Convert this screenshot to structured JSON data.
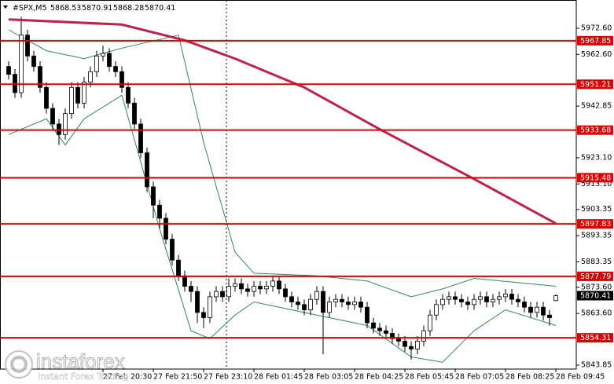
{
  "chart_data": {
    "type": "candlestick",
    "title": "#SPX,M5",
    "xlim": [
      -1.375,
      90.25
    ],
    "ylim": [
      5842.35,
      5983.4
    ],
    "yticks": [
      {
        "value": 5972.6,
        "label": "5972.60"
      },
      {
        "value": 5962.6,
        "label": "5962.60"
      },
      5942.85,
      {
        "value": 5923.1,
        "label": "5923.10"
      },
      {
        "value": 5913.1,
        "label": "5913.10"
      },
      5903.35,
      5893.35,
      5883.35,
      {
        "value": 5873.6,
        "label": "5873.60"
      },
      {
        "value": 5863.6,
        "label": "5863.60"
      },
      5843.85
    ],
    "xticks": [
      {
        "value": 15,
        "label": "27 Feb 20:30"
      },
      {
        "value": 23,
        "label": "27 Feb 21:50"
      },
      {
        "value": 31,
        "label": "27 Feb 23:10"
      },
      {
        "value": 39,
        "label": "28 Feb 01:45"
      },
      {
        "value": 47,
        "label": "28 Feb 03:05"
      },
      {
        "value": 55,
        "label": "28 Feb 04:25"
      },
      {
        "value": 63,
        "label": "28 Feb 05:45"
      },
      {
        "value": 71,
        "label": "28 Feb 07:05"
      },
      {
        "value": 79,
        "label": "28 Feb 08:25"
      },
      {
        "value": 87,
        "label": "28 Feb 09:45"
      }
    ],
    "open": [
      5958,
      5955,
      5948,
      5970,
      5962,
      5958,
      5950,
      5942,
      5936,
      5932,
      5940,
      5950,
      5944,
      5952,
      5956,
      5962,
      5963,
      5958,
      5956,
      5950,
      5944,
      5936,
      5925,
      5912,
      5905,
      5900,
      5892,
      5884,
      5878,
      5874,
      5872,
      5864,
      5862,
      5870,
      5872,
      5870,
      5874,
      5875,
      5873,
      5872,
      5874,
      5873,
      5874,
      5876,
      5873,
      5870,
      5868,
      5867,
      5865,
      5869,
      5872,
      5864,
      5868,
      5869,
      5868,
      5867,
      5868,
      5866,
      5860,
      5858,
      5857,
      5856,
      5854,
      5853,
      5851,
      5850,
      5853,
      5857,
      5863,
      5867,
      5869,
      5870,
      5869,
      5868,
      5867,
      5869,
      5870,
      5868,
      5869,
      5870,
      5871,
      5869,
      5868,
      5866,
      5864,
      5866,
      5863,
      5868.53
    ],
    "high": [
      5960,
      5957,
      5977,
      5972,
      5964,
      5960,
      5952,
      5944,
      5938,
      5942,
      5952,
      5952,
      5954,
      5958,
      5964,
      5966,
      5965,
      5960,
      5958,
      5952,
      5946,
      5938,
      5927,
      5914,
      5907,
      5902,
      5894,
      5886,
      5880,
      5876,
      5874,
      5866,
      5872,
      5874,
      5874,
      5877,
      5877,
      5877,
      5875,
      5876,
      5876,
      5876,
      5878,
      5878,
      5875,
      5872,
      5870,
      5869,
      5871,
      5874,
      5874,
      5870,
      5871,
      5871,
      5870,
      5870,
      5870,
      5868,
      5862,
      5860,
      5859,
      5858,
      5856,
      5855,
      5853,
      5855,
      5859,
      5865,
      5869,
      5871,
      5872,
      5872,
      5871,
      5870,
      5871,
      5872,
      5872,
      5871,
      5872,
      5873,
      5873,
      5871,
      5870,
      5868,
      5868,
      5868,
      5865,
      5870.91
    ],
    "low": [
      5953,
      5946,
      5946,
      5960,
      5956,
      5948,
      5940,
      5934,
      5928,
      5930,
      5938,
      5942,
      5942,
      5950,
      5954,
      5960,
      5956,
      5954,
      5948,
      5942,
      5934,
      5923,
      5910,
      5900,
      5896,
      5890,
      5882,
      5876,
      5872,
      5868,
      5860,
      5858,
      5860,
      5868,
      5868,
      5868,
      5872,
      5871,
      5870,
      5870,
      5871,
      5871,
      5872,
      5871,
      5868,
      5866,
      5865,
      5863,
      5863,
      5867,
      5848,
      5862,
      5866,
      5866,
      5865,
      5865,
      5864,
      5858,
      5856,
      5855,
      5854,
      5852,
      5851,
      5849,
      5846,
      5848,
      5851,
      5855,
      5861,
      5865,
      5867,
      5867,
      5866,
      5865,
      5865,
      5867,
      5866,
      5866,
      5867,
      5868,
      5867,
      5866,
      5864,
      5862,
      5862,
      5861,
      5859,
      5868.28
    ],
    "close": [
      5955,
      5948,
      5970,
      5962,
      5958,
      5950,
      5942,
      5936,
      5932,
      5940,
      5950,
      5944,
      5952,
      5956,
      5962,
      5963,
      5958,
      5956,
      5950,
      5944,
      5936,
      5925,
      5912,
      5905,
      5900,
      5892,
      5884,
      5878,
      5874,
      5872,
      5864,
      5862,
      5870,
      5872,
      5870,
      5874,
      5875,
      5873,
      5872,
      5874,
      5873,
      5874,
      5876,
      5873,
      5870,
      5868,
      5867,
      5865,
      5869,
      5872,
      5864,
      5868,
      5869,
      5868,
      5867,
      5868,
      5866,
      5860,
      5858,
      5857,
      5856,
      5854,
      5853,
      5851,
      5850,
      5853,
      5857,
      5863,
      5867,
      5869,
      5870,
      5869,
      5868,
      5867,
      5869,
      5870,
      5868,
      5869,
      5870,
      5871,
      5869,
      5868,
      5866,
      5864,
      5866,
      5863,
      5862,
      5870.41
    ],
    "ma": {
      "color": "#c0204a",
      "x": [
        0,
        18,
        28,
        36,
        47,
        59,
        74,
        87
      ],
      "values": [
        5976,
        5974,
        5968,
        5961,
        5950,
        5934,
        5915,
        5898
      ]
    },
    "bb_upper": {
      "color": "#2e8b57",
      "x": [
        0,
        6,
        12,
        18,
        27,
        31,
        36,
        39,
        49,
        57,
        64,
        69,
        74,
        87
      ],
      "values": [
        5972,
        5964,
        5961,
        5965,
        5970,
        5929,
        5887,
        5879,
        5878,
        5876,
        5870,
        5873,
        5877,
        5874
      ]
    },
    "bb_lower": {
      "color": "#2e8b57",
      "x": [
        0,
        6,
        9,
        12,
        18,
        24,
        29,
        32,
        36,
        39,
        49,
        57,
        64,
        69,
        74,
        79,
        87
      ],
      "values": [
        5932,
        5938,
        5928,
        5938,
        5947,
        5896,
        5857,
        5854,
        5863,
        5868,
        5863,
        5859,
        5847,
        5845,
        5857,
        5865,
        5859
      ]
    },
    "levels": {
      "color": "#e00000",
      "values": [
        5967.85,
        5951.21,
        5933.68,
        5915.48,
        5897.83,
        5877.79,
        5854.31
      ]
    }
  },
  "watermark": {
    "brand": "instaforex",
    "tagline": "Instant Forex Trading"
  }
}
